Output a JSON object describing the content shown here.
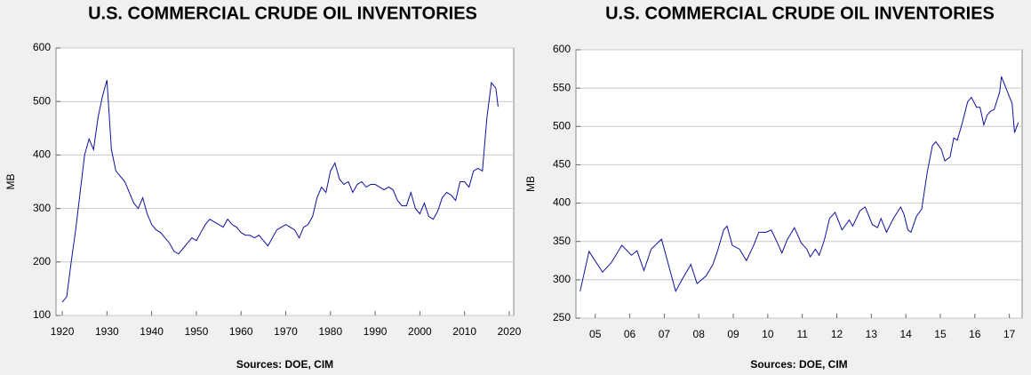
{
  "chart_data": [
    {
      "type": "line",
      "title": "U.S. COMMERCIAL CRUDE OIL INVENTORIES",
      "y_label": "MB",
      "x_label": "Sources:  DOE, CIM",
      "grid": true,
      "xlim": [
        1918.6,
        2021
      ],
      "xticks": [
        1920,
        1930,
        1940,
        1950,
        1960,
        1970,
        1980,
        1990,
        2000,
        2010,
        2020
      ],
      "ylim": [
        100,
        600
      ],
      "yticks": [
        100,
        200,
        300,
        400,
        500,
        600
      ],
      "x": [
        1920,
        1921,
        1922,
        1923,
        1924,
        1925,
        1926,
        1927,
        1928,
        1929,
        1930,
        1931,
        1932,
        1933,
        1934,
        1935,
        1936,
        1937,
        1938,
        1939,
        1940,
        1941,
        1942,
        1943,
        1944,
        1945,
        1946,
        1947,
        1948,
        1949,
        1950,
        1951,
        1952,
        1953,
        1954,
        1955,
        1956,
        1957,
        1958,
        1959,
        1960,
        1961,
        1962,
        1963,
        1964,
        1965,
        1966,
        1967,
        1968,
        1969,
        1970,
        1971,
        1972,
        1973,
        1974,
        1975,
        1976,
        1977,
        1978,
        1979,
        1980,
        1981,
        1982,
        1983,
        1984,
        1985,
        1986,
        1987,
        1988,
        1989,
        1990,
        1991,
        1992,
        1993,
        1994,
        1995,
        1996,
        1997,
        1998,
        1999,
        2000,
        2001,
        2002,
        2003,
        2004,
        2005,
        2006,
        2007,
        2008,
        2009,
        2010,
        2011,
        2012,
        2013,
        2014,
        2015,
        2016,
        2017,
        2017.5
      ],
      "series": [
        {
          "name": "MB",
          "color": "#1010a0",
          "values": [
            125,
            135,
            200,
            260,
            330,
            400,
            430,
            410,
            470,
            510,
            540,
            410,
            370,
            360,
            350,
            330,
            310,
            300,
            320,
            290,
            270,
            260,
            255,
            245,
            235,
            220,
            215,
            225,
            235,
            245,
            240,
            255,
            270,
            280,
            275,
            270,
            265,
            280,
            270,
            265,
            255,
            250,
            250,
            245,
            250,
            240,
            230,
            245,
            260,
            265,
            270,
            265,
            260,
            245,
            265,
            270,
            285,
            320,
            340,
            330,
            370,
            385,
            355,
            345,
            350,
            330,
            345,
            350,
            340,
            345,
            345,
            340,
            335,
            340,
            335,
            315,
            305,
            305,
            330,
            300,
            290,
            310,
            285,
            280,
            295,
            320,
            330,
            325,
            315,
            350,
            350,
            340,
            370,
            375,
            370,
            470,
            535,
            525,
            490
          ]
        }
      ]
    },
    {
      "type": "line",
      "title": "U.S. COMMERCIAL CRUDE OIL INVENTORIES",
      "y_label": "MB",
      "x_label": "Sources:  DOE, CIM",
      "grid": true,
      "xlim": [
        2004.94,
        2017.87
      ],
      "xticks": [
        {
          "value": 2005.5,
          "label": "05"
        },
        {
          "value": 2006.5,
          "label": "06"
        },
        {
          "value": 2007.5,
          "label": "07"
        },
        {
          "value": 2008.5,
          "label": "08"
        },
        {
          "value": 2009.5,
          "label": "09"
        },
        {
          "value": 2010.5,
          "label": "10"
        },
        {
          "value": 2011.5,
          "label": "11"
        },
        {
          "value": 2012.5,
          "label": "12"
        },
        {
          "value": 2013.5,
          "label": "13"
        },
        {
          "value": 2014.5,
          "label": "14"
        },
        {
          "value": 2015.5,
          "label": "15"
        },
        {
          "value": 2016.5,
          "label": "16"
        },
        {
          "value": 2017.5,
          "label": "17"
        }
      ],
      "ylim": [
        250,
        600
      ],
      "yticks": [
        250,
        300,
        350,
        400,
        450,
        500,
        550,
        600
      ],
      "x": [
        2005.06,
        2005.32,
        2005.71,
        2005.96,
        2006.27,
        2006.55,
        2006.71,
        2006.91,
        2007.12,
        2007.42,
        2007.68,
        2007.83,
        2008.01,
        2008.27,
        2008.45,
        2008.71,
        2008.91,
        2009.06,
        2009.22,
        2009.32,
        2009.47,
        2009.68,
        2009.88,
        2010.09,
        2010.24,
        2010.45,
        2010.6,
        2010.76,
        2010.91,
        2011.06,
        2011.27,
        2011.47,
        2011.63,
        2011.73,
        2011.88,
        2011.99,
        2012.14,
        2012.29,
        2012.45,
        2012.65,
        2012.86,
        2012.96,
        2013.17,
        2013.32,
        2013.53,
        2013.68,
        2013.78,
        2013.94,
        2014.14,
        2014.35,
        2014.45,
        2014.56,
        2014.65,
        2014.81,
        2014.96,
        2015.12,
        2015.27,
        2015.37,
        2015.53,
        2015.63,
        2015.78,
        2015.89,
        2015.99,
        2016.14,
        2016.29,
        2016.4,
        2016.55,
        2016.65,
        2016.76,
        2016.86,
        2016.96,
        2017.06,
        2017.22,
        2017.27,
        2017.42,
        2017.58,
        2017.65,
        2017.76
      ],
      "series": [
        {
          "name": "MB",
          "color": "#1010a0",
          "values": [
            285,
            337,
            310,
            322,
            345,
            332,
            338,
            312,
            340,
            353,
            310,
            285,
            300,
            320,
            295,
            305,
            320,
            340,
            365,
            370,
            345,
            340,
            325,
            345,
            362,
            362,
            365,
            350,
            335,
            352,
            368,
            348,
            340,
            330,
            340,
            332,
            352,
            380,
            388,
            365,
            378,
            370,
            390,
            395,
            372,
            368,
            380,
            362,
            380,
            395,
            385,
            365,
            362,
            383,
            392,
            440,
            475,
            480,
            470,
            455,
            460,
            485,
            482,
            505,
            532,
            538,
            525,
            525,
            502,
            515,
            520,
            522,
            545,
            565,
            548,
            530,
            492,
            505
          ]
        }
      ]
    }
  ]
}
